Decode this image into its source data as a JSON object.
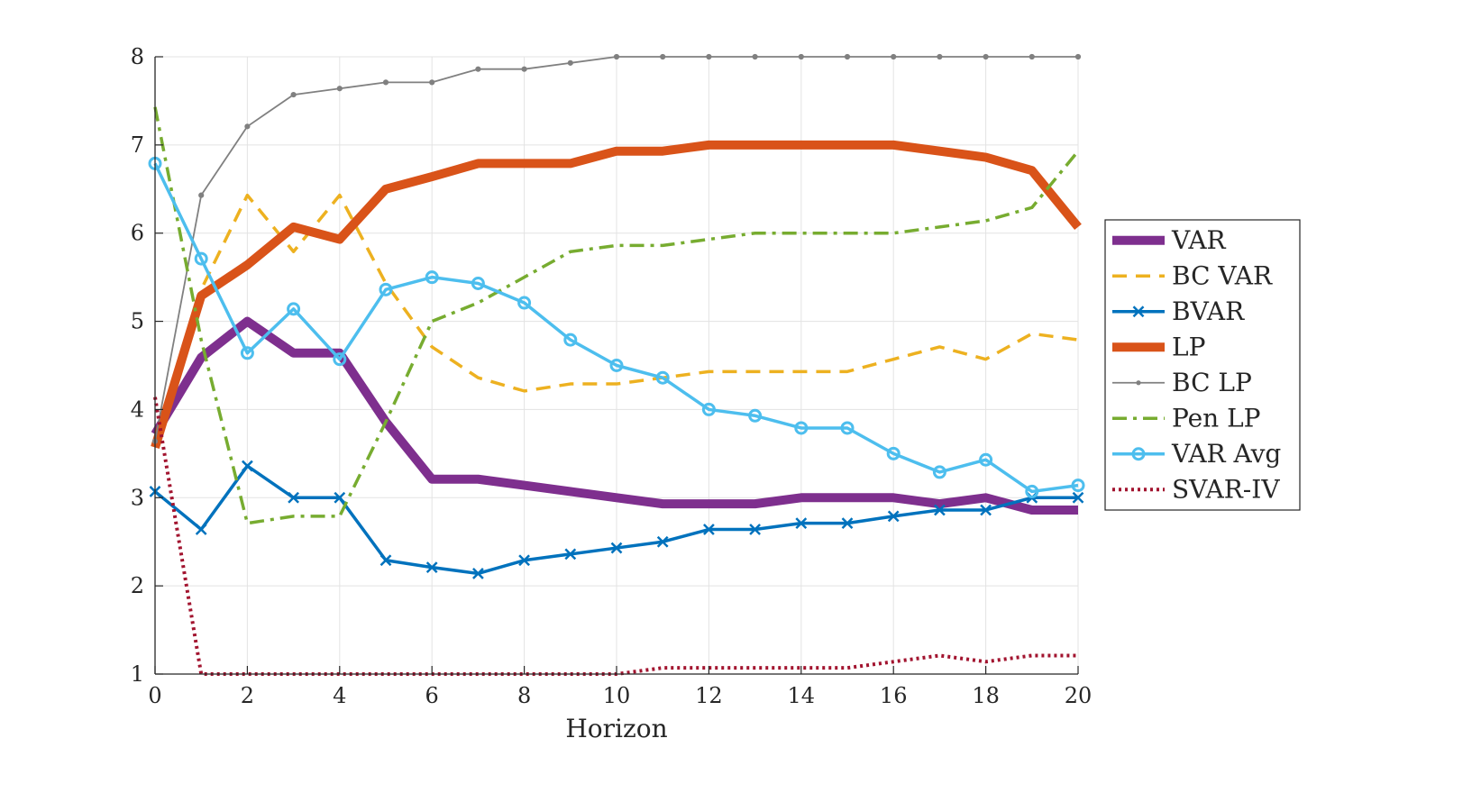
{
  "chart_data": {
    "type": "line",
    "title": "",
    "xlabel": "Horizon",
    "ylabel": "",
    "xlim": [
      0,
      20
    ],
    "ylim": [
      1,
      8
    ],
    "xticks": [
      "0",
      "2",
      "4",
      "6",
      "8",
      "10",
      "12",
      "14",
      "16",
      "18",
      "20"
    ],
    "yticks": [
      "1",
      "2",
      "3",
      "4",
      "5",
      "6",
      "7",
      "8"
    ],
    "grid": true,
    "legend": "right-outside",
    "x": [
      0,
      1,
      2,
      3,
      4,
      5,
      6,
      7,
      8,
      9,
      10,
      11,
      12,
      13,
      14,
      15,
      16,
      17,
      18,
      19,
      20
    ],
    "series": [
      {
        "name": "VAR",
        "color": "#7E2F8E",
        "style": "solid-thick",
        "marker": "none",
        "values": [
          3.72,
          4.59,
          5.0,
          4.64,
          4.64,
          3.86,
          3.21,
          3.21,
          3.14,
          3.07,
          3.0,
          2.93,
          2.93,
          2.93,
          3.0,
          3.0,
          3.0,
          2.93,
          3.0,
          2.86,
          2.86
        ]
      },
      {
        "name": "BC VAR",
        "color": "#EDB120",
        "style": "dashed",
        "marker": "none",
        "values": [
          3.64,
          5.36,
          6.43,
          5.79,
          6.43,
          5.43,
          4.71,
          4.36,
          4.21,
          4.29,
          4.29,
          4.36,
          4.43,
          4.43,
          4.43,
          4.43,
          4.57,
          4.71,
          4.57,
          4.86,
          4.79
        ]
      },
      {
        "name": "BVAR",
        "color": "#0072BD",
        "style": "solid",
        "marker": "x",
        "values": [
          3.07,
          2.64,
          3.36,
          3.0,
          3.0,
          2.29,
          2.21,
          2.14,
          2.29,
          2.36,
          2.43,
          2.5,
          2.64,
          2.64,
          2.71,
          2.71,
          2.79,
          2.86,
          2.86,
          3.0,
          3.0
        ]
      },
      {
        "name": "LP",
        "color": "#D95319",
        "style": "solid-thick",
        "marker": "none",
        "values": [
          3.57,
          5.29,
          5.64,
          6.07,
          5.93,
          6.5,
          6.64,
          6.79,
          6.79,
          6.79,
          6.93,
          6.93,
          7.0,
          7.0,
          7.0,
          7.0,
          7.0,
          6.93,
          6.86,
          6.71,
          6.07
        ]
      },
      {
        "name": "BC LP",
        "color": "#808080",
        "style": "solid-thin",
        "marker": "dot",
        "values": [
          3.64,
          6.43,
          7.21,
          7.57,
          7.64,
          7.71,
          7.71,
          7.86,
          7.86,
          7.93,
          8.0,
          8.0,
          8.0,
          8.0,
          8.0,
          8.0,
          8.0,
          8.0,
          8.0,
          8.0,
          8.0
        ]
      },
      {
        "name": "Pen LP",
        "color": "#77AC30",
        "style": "dashdot",
        "marker": "none",
        "values": [
          7.43,
          4.79,
          2.71,
          2.79,
          2.79,
          3.86,
          5.0,
          5.21,
          5.5,
          5.79,
          5.86,
          5.86,
          5.93,
          6.0,
          6.0,
          6.0,
          6.0,
          6.07,
          6.14,
          6.29,
          6.93
        ]
      },
      {
        "name": "VAR Avg",
        "color": "#4DBEEE",
        "style": "solid",
        "marker": "circle",
        "values": [
          6.79,
          5.71,
          4.64,
          5.14,
          4.57,
          5.36,
          5.5,
          5.43,
          5.21,
          4.79,
          4.5,
          4.36,
          4.0,
          3.93,
          3.79,
          3.79,
          3.5,
          3.29,
          3.43,
          3.07,
          3.14
        ]
      },
      {
        "name": "SVAR-IV",
        "color": "#A2142F",
        "style": "dotted",
        "marker": "none",
        "values": [
          4.14,
          1.0,
          1.0,
          1.0,
          1.0,
          1.0,
          1.0,
          1.0,
          1.0,
          1.0,
          1.0,
          1.07,
          1.07,
          1.07,
          1.07,
          1.07,
          1.14,
          1.21,
          1.14,
          1.21,
          1.21
        ]
      }
    ]
  }
}
